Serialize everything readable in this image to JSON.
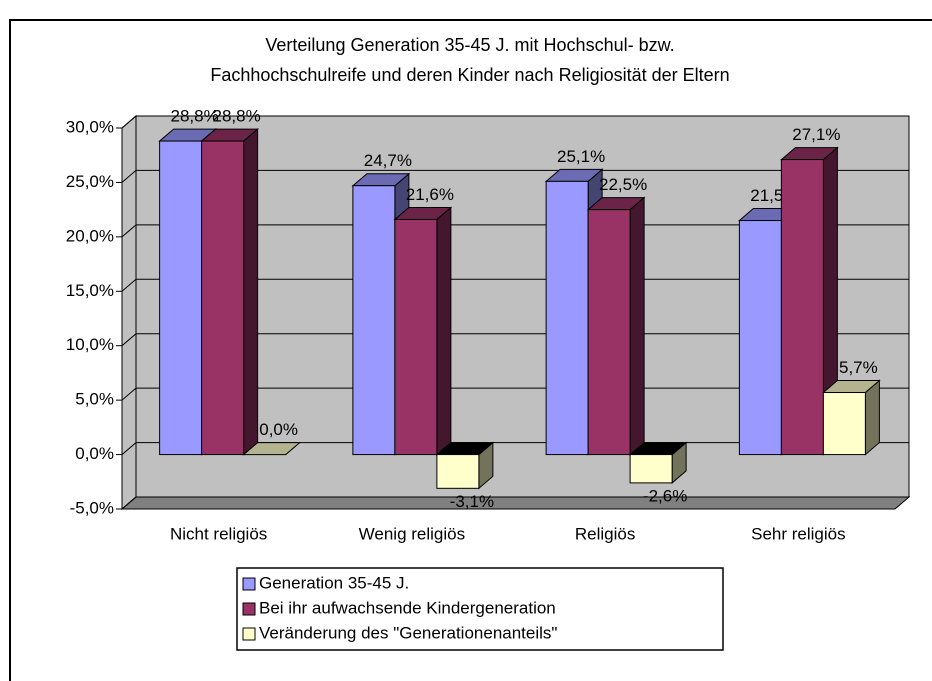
{
  "chart_data": {
    "type": "bar3d",
    "title": [
      "Verteilung Generation 35-45 J. mit Hochschul- bzw.",
      "Fachhochschulreife und deren Kinder nach Religiosität der Eltern"
    ],
    "categories": [
      "Nicht religiös",
      "Wenig religiös",
      "Religiös",
      "Sehr religiös"
    ],
    "series": [
      {
        "name": "Generation 35-45 J.",
        "color": "#9999ff",
        "values": [
          28.8,
          24.7,
          25.1,
          21.5
        ],
        "value_labels": [
          "28,8%",
          "24,7%",
          "25,1%",
          "21,5%"
        ]
      },
      {
        "name": "Bei ihr aufwachsende Kindergeneration",
        "color": "#993366",
        "values": [
          28.8,
          21.6,
          22.5,
          27.1
        ],
        "value_labels": [
          "28,8%",
          "21,6%",
          "22,5%",
          "27,1%"
        ]
      },
      {
        "name": "Veränderung des \"Generationenanteils\"",
        "color": "#ffffcc",
        "values": [
          0.0,
          -3.1,
          -2.6,
          5.7
        ],
        "value_labels": [
          "0,0%",
          "-3,1%",
          "-2,6%",
          "5,7%"
        ]
      }
    ],
    "ylim": [
      -5,
      30
    ],
    "yticks": [
      {
        "value": -5,
        "label": "-5,0%"
      },
      {
        "value": 0,
        "label": "0,0%"
      },
      {
        "value": 5,
        "label": "5,0%"
      },
      {
        "value": 10,
        "label": "10,0%"
      },
      {
        "value": 15,
        "label": "15,0%"
      },
      {
        "value": 20,
        "label": "20,0%"
      },
      {
        "value": 25,
        "label": "25,0%"
      },
      {
        "value": 30,
        "label": "30,0%"
      }
    ],
    "grid": true,
    "legend": "bottom"
  }
}
